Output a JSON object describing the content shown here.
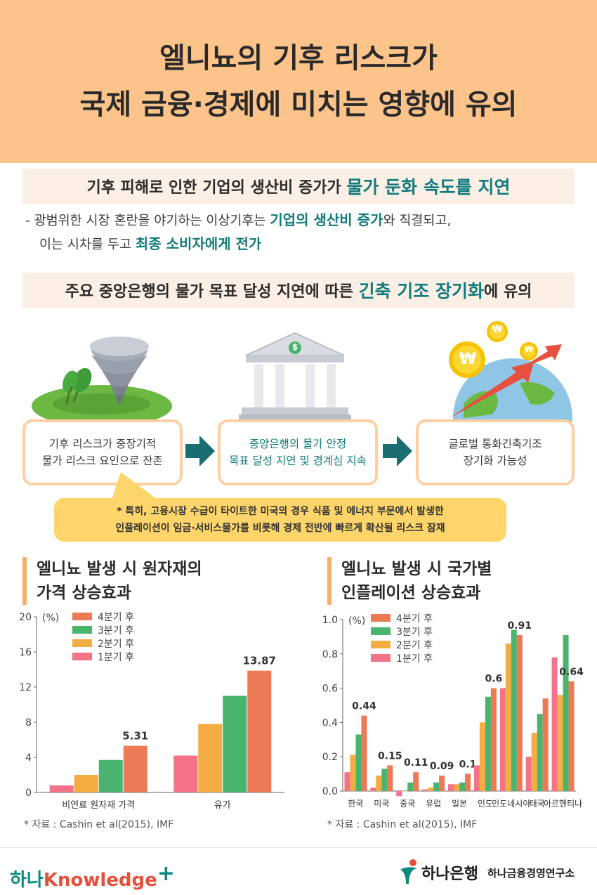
{
  "title": {
    "line1": "엘니뇨의 기후 리스크가",
    "line2": "국제 금융·경제에 미치는 영향에 유의"
  },
  "banner1": {
    "prefix": "기후 피해로 인한 기업의 생산비 증가가 ",
    "highlight": "물가 둔화 속도를 지연"
  },
  "paragraph": {
    "dash": "-",
    "l1_a": "광범위한 시장 혼란을 야기하는 이상기후는 ",
    "l1_b": "기업의 생산비 증가",
    "l1_c": "와 직결되고,",
    "l2_a": "이는 시차를 두고 ",
    "l2_b": "최종 소비자에게 전가"
  },
  "banner2": {
    "prefix": "주요 중앙은행의 물가 목표 달성 지연에 따른 ",
    "highlight": "긴축 기조 장기화",
    "suffix": "에 유의"
  },
  "steps": [
    {
      "l1": "기후 리스크가 중장기적",
      "l2": "물가 리스크 요인으로 잔존"
    },
    {
      "l1": "중앙은행의 물가 안정",
      "l2": "목표 달성 지연 및 경계심 지속"
    },
    {
      "l1": "글로벌 통화긴축기조",
      "l2": "장기화 가능성"
    }
  ],
  "icons": {
    "bank_symbol": "$",
    "coin_symbol": "₩"
  },
  "note": {
    "l1": "* 특히, 고용시장 수급이 타이트한 미국의 경우 식품 및 에너지 부문에서 발생한",
    "l2": "인플레이션이 임금·서비스물가를 비롯해 경제 전반에 빠르게 확산될 리스크 잠재"
  },
  "section1": {
    "l1": "엘니뇨 발생 시 원자재의",
    "l2": "가격 상승효과"
  },
  "section2": {
    "l1": "엘니뇨 발생 시 국가별",
    "l2": "인플레이션 상승효과"
  },
  "colors": {
    "q4": "#ec7a55",
    "q3": "#49b46e",
    "q2": "#f3ad43",
    "q1": "#f37489",
    "teal": "#117b7b",
    "header": "#fcc38a"
  },
  "chart_data": [
    {
      "type": "bar",
      "unit": "(%)",
      "categories": [
        "비연료 원자재 가격",
        "유가"
      ],
      "ylim": [
        0,
        20
      ],
      "yticks": [
        0,
        4,
        8,
        12,
        16,
        20
      ],
      "series": [
        {
          "name": "1분기 후",
          "values": [
            0.8,
            4.2
          ]
        },
        {
          "name": "2분기 후",
          "values": [
            2.0,
            7.8
          ]
        },
        {
          "name": "3분기 후",
          "values": [
            3.7,
            11.0
          ]
        },
        {
          "name": "4분기 후",
          "values": [
            5.31,
            13.87
          ]
        }
      ],
      "data_labels": [
        "5.31",
        "13.87"
      ],
      "legend": "top-left",
      "source": "* 자료 : Cashin et al(2015), IMF"
    },
    {
      "type": "bar",
      "unit": "(%)",
      "categories": [
        "한국",
        "미국",
        "중국",
        "유럽",
        "일본",
        "인도",
        "인도네시아",
        "태국",
        "아르헨티나"
      ],
      "ylim": [
        0,
        1.0
      ],
      "yticks": [
        "0.0",
        "0.2",
        "0.4",
        "0.6",
        "0.8",
        "1.0"
      ],
      "series": [
        {
          "name": "1분기 후",
          "values": [
            0.11,
            0.02,
            -0.03,
            0.01,
            0.04,
            0.15,
            0.6,
            0.2,
            0.78
          ]
        },
        {
          "name": "2분기 후",
          "values": [
            0.21,
            0.09,
            0.0,
            0.02,
            0.04,
            0.4,
            0.86,
            0.34,
            0.56
          ]
        },
        {
          "name": "3분기 후",
          "values": [
            0.33,
            0.13,
            0.05,
            0.05,
            0.05,
            0.55,
            0.94,
            0.45,
            0.91
          ]
        },
        {
          "name": "4분기 후",
          "values": [
            0.44,
            0.15,
            0.11,
            0.09,
            0.1,
            0.6,
            0.91,
            0.54,
            0.64
          ]
        }
      ],
      "data_labels": [
        "0.44",
        "0.15",
        "0.11",
        "0.09",
        "0.1",
        "0.6",
        "0.91",
        "",
        "0.64"
      ],
      "legend": "top-left",
      "source": "* 자료 : Cashin et al(2015), IMF"
    }
  ],
  "footer": {
    "brand_a": "하나",
    "brand_b": "Knowledge",
    "brand_plus": "+",
    "bank": "하나은행",
    "institute": "하나금융경영연구소"
  }
}
